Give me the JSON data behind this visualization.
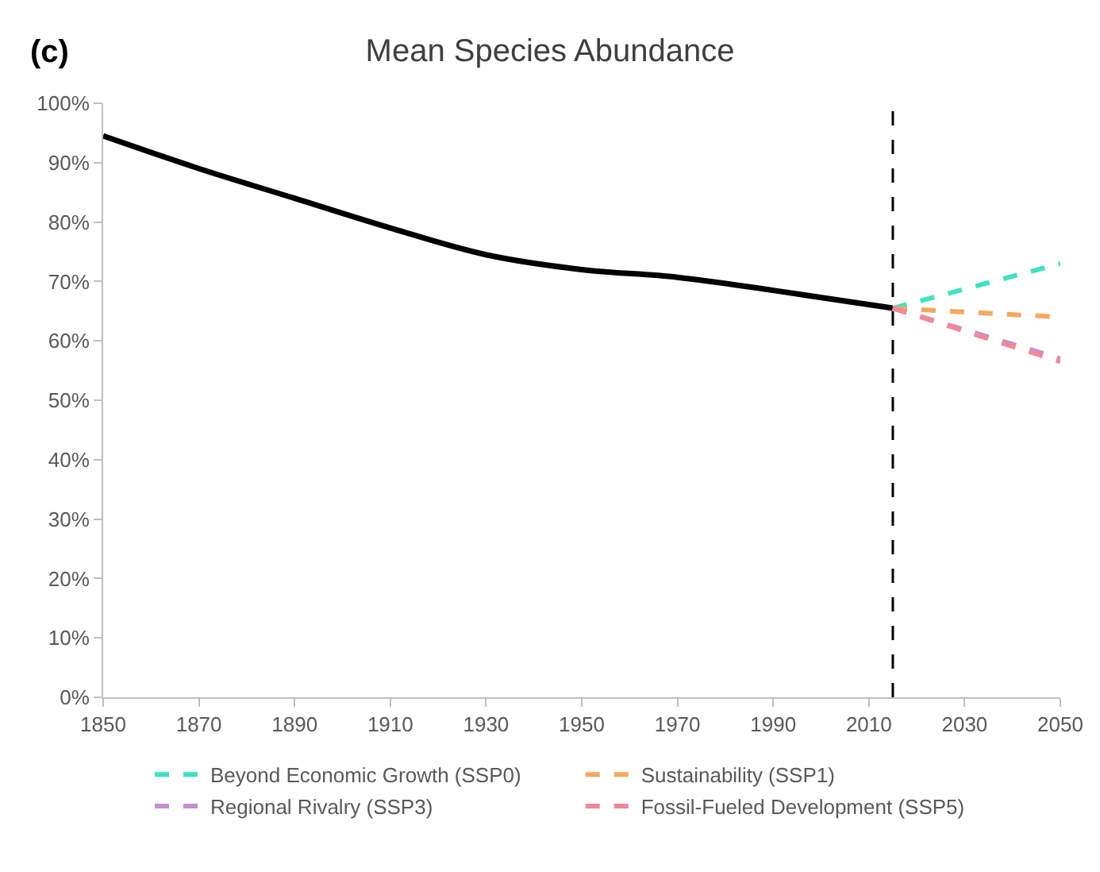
{
  "chart_data": {
    "type": "line",
    "title": "Mean Species Abundance",
    "annotations": [
      "(c)"
    ],
    "xlim": [
      1850,
      2050
    ],
    "xticks": [
      1850,
      1870,
      1890,
      1910,
      1930,
      1950,
      1970,
      1990,
      2010,
      2030,
      2050
    ],
    "ylim": [
      0,
      100
    ],
    "yticks": [
      {
        "value": 0,
        "label": "0%"
      },
      {
        "value": 10,
        "label": "10%"
      },
      {
        "value": 20,
        "label": "20%"
      },
      {
        "value": 30,
        "label": "30%"
      },
      {
        "value": 40,
        "label": "40%"
      },
      {
        "value": 50,
        "label": "50%"
      },
      {
        "value": 60,
        "label": "60%"
      },
      {
        "value": 70,
        "label": "70%"
      },
      {
        "value": 80,
        "label": "80%"
      },
      {
        "value": 90,
        "label": "90%"
      },
      {
        "value": 100,
        "label": "100%"
      }
    ],
    "legend": "bottom",
    "marker": "none",
    "ref_lines": [
      {
        "axis": "x",
        "value": 2015,
        "color": "#000000",
        "line_style": "dashed"
      }
    ],
    "series": [
      {
        "color": "#000000",
        "line_style": "solid",
        "x": [
          1850,
          1870,
          1890,
          1910,
          1930,
          1950,
          1970,
          1990,
          2015
        ],
        "values": [
          94.5,
          89,
          84,
          79,
          74.5,
          72,
          70.7,
          68.5,
          65.5
        ]
      },
      {
        "name": "Beyond Economic Growth (SSP0)",
        "color": "#40e0c0",
        "line_style": "dashed",
        "x": [
          2015,
          2050
        ],
        "values": [
          65.5,
          73
        ]
      },
      {
        "name": "Sustainability (SSP1)",
        "color": "#f5a860",
        "line_style": "dashed",
        "x": [
          2015,
          2050
        ],
        "values": [
          65.5,
          64
        ]
      },
      {
        "name": "Regional Rivalry (SSP3)",
        "color": "#c090d0",
        "line_style": "dashed",
        "x": [
          2015,
          2050
        ],
        "values": [
          65.5,
          57
        ]
      },
      {
        "name": "Fossil-Fueled Development (SSP5)",
        "color": "#f08898",
        "line_style": "dashed",
        "x": [
          2015,
          2050
        ],
        "values": [
          65.5,
          56.5
        ]
      }
    ]
  }
}
